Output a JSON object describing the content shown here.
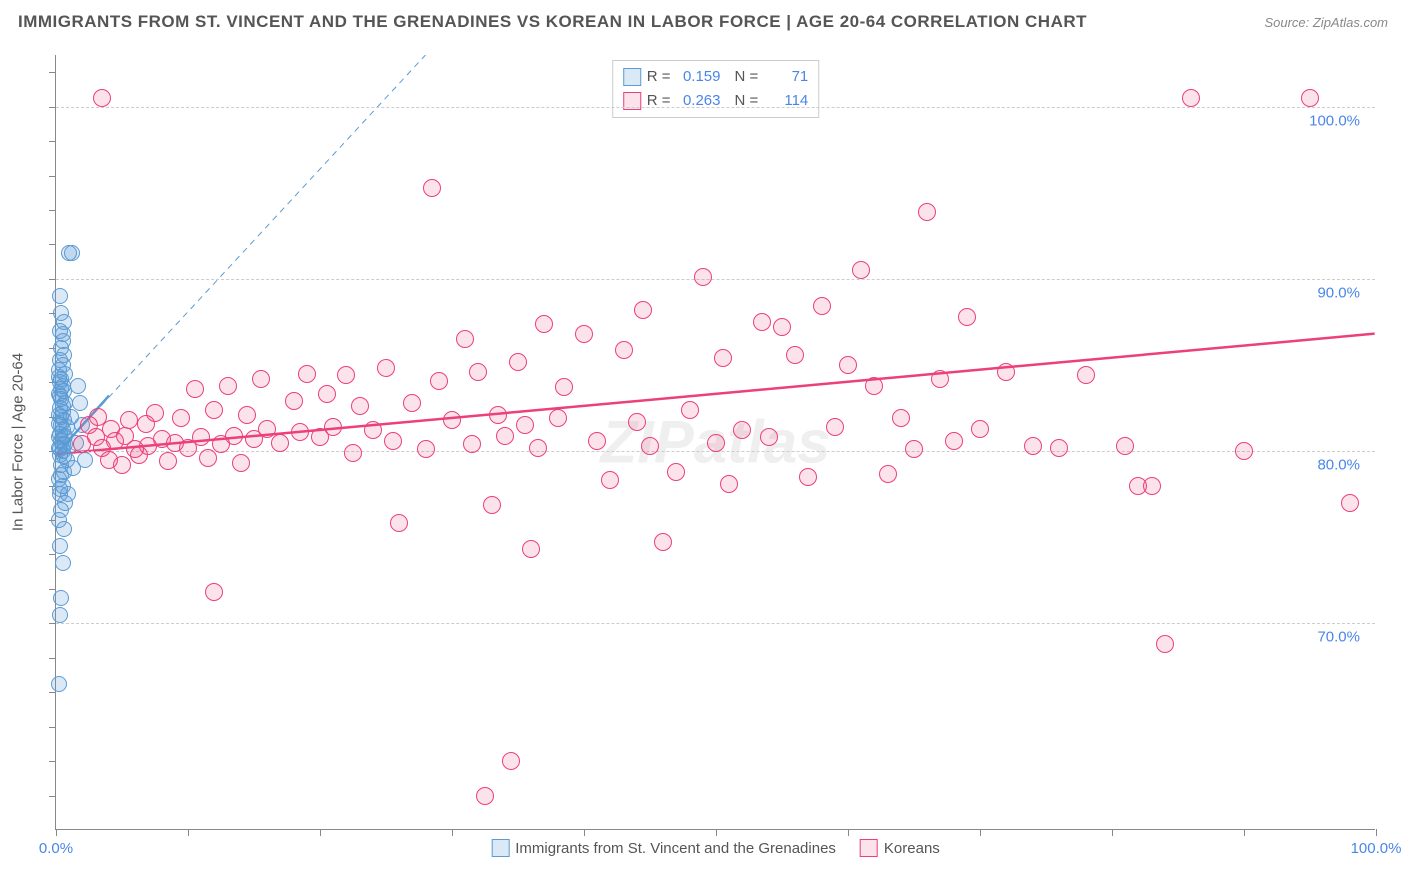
{
  "title": "IMMIGRANTS FROM ST. VINCENT AND THE GRENADINES VS KOREAN IN LABOR FORCE | AGE 20-64 CORRELATION CHART",
  "source": "Source: ZipAtlas.com",
  "watermark": "ZIPatlas",
  "ylabel": "In Labor Force | Age 20-64",
  "chart": {
    "type": "scatter",
    "xlim": [
      0,
      100
    ],
    "ylim": [
      58,
      103
    ],
    "x_ticks": [
      0,
      10,
      20,
      30,
      40,
      50,
      60,
      70,
      80,
      90,
      100
    ],
    "y_gridlines": [
      70,
      80,
      90,
      100
    ],
    "x_labels": [
      {
        "v": 0,
        "t": "0.0%"
      },
      {
        "v": 100,
        "t": "100.0%"
      }
    ],
    "y_labels": [
      {
        "v": 70,
        "t": "70.0%"
      },
      {
        "v": 80,
        "t": "80.0%"
      },
      {
        "v": 90,
        "t": "90.0%"
      },
      {
        "v": 100,
        "t": "100.0%"
      }
    ],
    "background_color": "#ffffff",
    "grid_color": "#cccccc",
    "axis_color": "#888888",
    "tick_label_color": "#4a86e8"
  },
  "series": [
    {
      "name": "Immigrants from St. Vincent and the Grenadines",
      "color_stroke": "#5b9bd5",
      "color_fill": "rgba(91,155,213,0.22)",
      "marker_radius": 8,
      "trend_solid": {
        "x1": 0,
        "y1": 79.8,
        "x2": 4,
        "y2": 83.2,
        "width": 2.5
      },
      "trend_dashed": {
        "x1": 0,
        "y1": 79.8,
        "x2": 28,
        "y2": 103,
        "width": 1
      },
      "R": "0.159",
      "N": "71",
      "points": [
        [
          0.2,
          66.5
        ],
        [
          0.3,
          70.5
        ],
        [
          0.4,
          71.5
        ],
        [
          0.5,
          73.5
        ],
        [
          0.3,
          74.5
        ],
        [
          0.6,
          75.5
        ],
        [
          0.2,
          76
        ],
        [
          0.4,
          76.6
        ],
        [
          0.7,
          77
        ],
        [
          0.3,
          77.5
        ],
        [
          0.5,
          78
        ],
        [
          0.2,
          78.4
        ],
        [
          0.6,
          78.8
        ],
        [
          0.4,
          79.2
        ],
        [
          0.8,
          79.5
        ],
        [
          0.3,
          79.8
        ],
        [
          0.5,
          80
        ],
        [
          0.2,
          80.2
        ],
        [
          0.7,
          80.4
        ],
        [
          0.4,
          80.6
        ],
        [
          0.6,
          80.8
        ],
        [
          0.3,
          81
        ],
        [
          0.5,
          81.2
        ],
        [
          0.8,
          81.4
        ],
        [
          0.2,
          81.6
        ],
        [
          0.6,
          81.8
        ],
        [
          0.4,
          82
        ],
        [
          0.5,
          82.3
        ],
        [
          0.3,
          82.5
        ],
        [
          0.7,
          82.8
        ],
        [
          0.4,
          83
        ],
        [
          0.2,
          83.3
        ],
        [
          0.6,
          83.5
        ],
        [
          0.5,
          83.8
        ],
        [
          0.3,
          84
        ],
        [
          0.4,
          84.2
        ],
        [
          0.7,
          84.5
        ],
        [
          0.2,
          84.7
        ],
        [
          0.5,
          85
        ],
        [
          0.3,
          85.3
        ],
        [
          0.6,
          85.6
        ],
        [
          0.4,
          86
        ],
        [
          0.5,
          86.4
        ],
        [
          0.3,
          87
        ],
        [
          0.6,
          87.5
        ],
        [
          0.4,
          88
        ],
        [
          0.3,
          89
        ],
        [
          1.0,
          91.5
        ],
        [
          1.2,
          91.5
        ],
        [
          1.8,
          82.8
        ],
        [
          1.5,
          80.5
        ],
        [
          2.0,
          81.5
        ],
        [
          2.2,
          79.5
        ],
        [
          1.7,
          83.8
        ],
        [
          0.9,
          77.5
        ],
        [
          1.1,
          82
        ],
        [
          1.3,
          79
        ],
        [
          0.2,
          80.8
        ],
        [
          0.4,
          81.5
        ],
        [
          0.3,
          83.2
        ],
        [
          0.5,
          82.6
        ],
        [
          0.2,
          84.3
        ],
        [
          0.6,
          79.7
        ],
        [
          0.4,
          78.6
        ],
        [
          0.3,
          77.8
        ],
        [
          0.5,
          80.4
        ],
        [
          0.7,
          80.9
        ],
        [
          0.2,
          82.1
        ],
        [
          0.4,
          83.6
        ],
        [
          0.3,
          80.1
        ],
        [
          0.5,
          86.8
        ]
      ]
    },
    {
      "name": "Koreans",
      "color_stroke": "#ec407a",
      "color_fill": "rgba(236,64,122,0.15)",
      "marker_radius": 9,
      "trend_solid": {
        "x1": 0,
        "y1": 79.8,
        "x2": 100,
        "y2": 86.8,
        "width": 2.5
      },
      "trend_dashed": null,
      "R": "0.263",
      "N": "114",
      "points": [
        [
          2,
          80.4
        ],
        [
          2.5,
          81.5
        ],
        [
          3,
          80.8
        ],
        [
          3.2,
          82
        ],
        [
          3.5,
          80.2
        ],
        [
          4,
          79.5
        ],
        [
          4.2,
          81.3
        ],
        [
          4.5,
          80.6
        ],
        [
          5,
          79.2
        ],
        [
          5.2,
          80.9
        ],
        [
          5.5,
          81.8
        ],
        [
          6,
          80.1
        ],
        [
          6.3,
          79.8
        ],
        [
          6.8,
          81.6
        ],
        [
          7,
          80.3
        ],
        [
          7.5,
          82.2
        ],
        [
          8,
          80.7
        ],
        [
          8.5,
          79.4
        ],
        [
          9,
          80.5
        ],
        [
          9.5,
          81.9
        ],
        [
          10,
          80.2
        ],
        [
          10.5,
          83.6
        ],
        [
          11,
          80.8
        ],
        [
          11.5,
          79.6
        ],
        [
          12,
          82.4
        ],
        [
          12.5,
          80.4
        ],
        [
          13,
          83.8
        ],
        [
          13.5,
          80.9
        ],
        [
          14,
          79.3
        ],
        [
          14.5,
          82.1
        ],
        [
          15,
          80.7
        ],
        [
          15.5,
          84.2
        ],
        [
          16,
          81.3
        ],
        [
          17,
          80.5
        ],
        [
          18,
          82.9
        ],
        [
          18.5,
          81.1
        ],
        [
          19,
          84.5
        ],
        [
          20,
          80.8
        ],
        [
          20.5,
          83.3
        ],
        [
          21,
          81.4
        ],
        [
          22,
          84.4
        ],
        [
          22.5,
          79.9
        ],
        [
          23,
          82.6
        ],
        [
          24,
          81.2
        ],
        [
          25,
          84.8
        ],
        [
          25.5,
          80.6
        ],
        [
          26,
          75.8
        ],
        [
          27,
          82.8
        ],
        [
          28,
          80.1
        ],
        [
          28.5,
          95.3
        ],
        [
          29,
          84.1
        ],
        [
          30,
          81.8
        ],
        [
          31,
          86.5
        ],
        [
          31.5,
          80.4
        ],
        [
          32,
          84.6
        ],
        [
          32.5,
          60
        ],
        [
          33,
          76.9
        ],
        [
          33.5,
          82.1
        ],
        [
          34,
          80.9
        ],
        [
          34.5,
          62
        ],
        [
          35,
          85.2
        ],
        [
          35.5,
          81.5
        ],
        [
          36,
          74.3
        ],
        [
          36.5,
          80.2
        ],
        [
          37,
          87.4
        ],
        [
          38,
          81.9
        ],
        [
          38.5,
          83.7
        ],
        [
          40,
          86.8
        ],
        [
          41,
          80.6
        ],
        [
          42,
          78.3
        ],
        [
          43,
          85.9
        ],
        [
          44,
          81.7
        ],
        [
          44.5,
          88.2
        ],
        [
          45,
          80.3
        ],
        [
          46,
          74.7
        ],
        [
          47,
          78.8
        ],
        [
          48,
          82.4
        ],
        [
          49,
          90.1
        ],
        [
          50,
          80.5
        ],
        [
          50.5,
          85.4
        ],
        [
          51,
          78.1
        ],
        [
          52,
          81.2
        ],
        [
          53.5,
          87.5
        ],
        [
          54,
          80.8
        ],
        [
          55,
          87.2
        ],
        [
          56,
          85.6
        ],
        [
          57,
          78.5
        ],
        [
          58,
          88.4
        ],
        [
          59,
          81.4
        ],
        [
          60,
          85
        ],
        [
          61,
          90.5
        ],
        [
          62,
          83.8
        ],
        [
          63,
          78.7
        ],
        [
          64,
          81.9
        ],
        [
          65,
          80.1
        ],
        [
          66,
          93.9
        ],
        [
          67,
          84.2
        ],
        [
          68,
          80.6
        ],
        [
          69,
          87.8
        ],
        [
          70,
          81.3
        ],
        [
          72,
          84.6
        ],
        [
          74,
          80.3
        ],
        [
          76,
          80.2
        ],
        [
          78,
          84.4
        ],
        [
          81,
          80.3
        ],
        [
          82,
          78
        ],
        [
          83,
          78
        ],
        [
          84,
          68.8
        ],
        [
          86,
          100.5
        ],
        [
          90,
          80
        ],
        [
          95,
          100.5
        ],
        [
          98,
          77
        ],
        [
          3.5,
          100.5
        ],
        [
          12,
          71.8
        ]
      ]
    }
  ],
  "stat_legend": {
    "rows": [
      {
        "swatch_fill": "rgba(91,155,213,0.22)",
        "swatch_stroke": "#5b9bd5",
        "R": "0.159",
        "N": "71"
      },
      {
        "swatch_fill": "rgba(236,64,122,0.15)",
        "swatch_stroke": "#ec407a",
        "R": "0.263",
        "N": "114"
      }
    ],
    "R_label": "R  =",
    "N_label": "N  ="
  },
  "bottom_legend": [
    {
      "swatch_fill": "rgba(91,155,213,0.22)",
      "swatch_stroke": "#5b9bd5",
      "label": "Immigrants from St. Vincent and the Grenadines"
    },
    {
      "swatch_fill": "rgba(236,64,122,0.15)",
      "swatch_stroke": "#ec407a",
      "label": "Koreans"
    }
  ]
}
